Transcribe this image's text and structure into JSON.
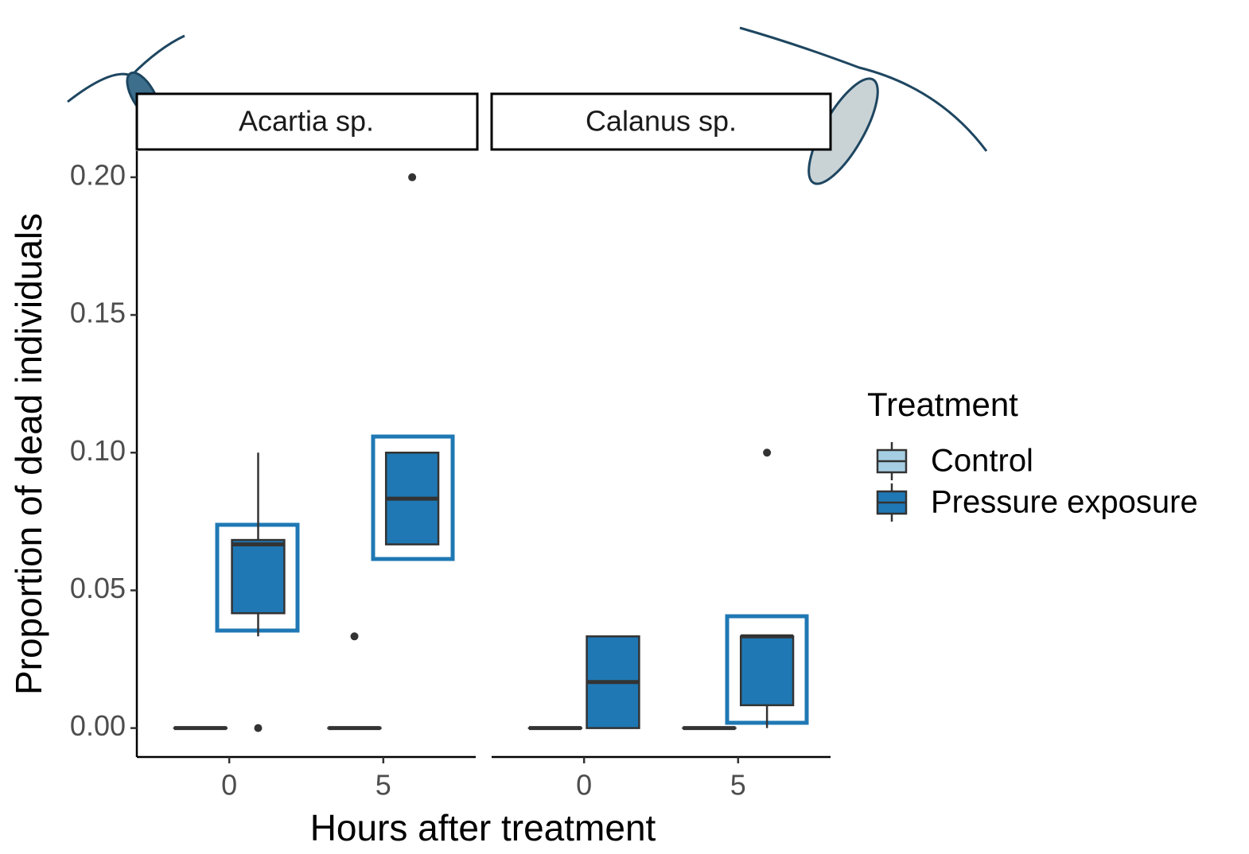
{
  "chart_data": {
    "type": "boxplot",
    "x_label": "Hours after treatment",
    "y_label": "Proportion of dead individuals",
    "categories": [
      "0",
      "5"
    ],
    "legend_title": "Treatment",
    "series": [
      {
        "name": "Control",
        "color": "#a6cee3"
      },
      {
        "name": "Pressure exposure",
        "color": "#1f78b4"
      }
    ],
    "ylim": [
      -0.0105,
      0.2095
    ],
    "yticks": [
      {
        "value": 0,
        "label": "0.00"
      },
      {
        "value": 0.05,
        "label": "0.05"
      },
      {
        "value": 0.1,
        "label": "0.10"
      },
      {
        "value": 0.15,
        "label": "0.15"
      },
      {
        "value": 0.2,
        "label": "0.20"
      }
    ],
    "facets": [
      {
        "title": "Acartia sp.",
        "boxes": [
          [
            {
              "whisker_low": 0,
              "q1": 0,
              "median": 0,
              "q3": 0,
              "whisker_high": 0,
              "outliers": []
            },
            {
              "whisker_low": 0.0333,
              "q1": 0.0417,
              "median": 0.0667,
              "q3": 0.0683,
              "whisker_high": 0.1,
              "outliers": [
                0
              ]
            }
          ],
          [
            {
              "whisker_low": 0,
              "q1": 0,
              "median": 0,
              "q3": 0,
              "whisker_high": 0,
              "outliers": [
                0.0333
              ]
            },
            {
              "whisker_low": 0.0667,
              "q1": 0.0667,
              "median": 0.0833,
              "q3": 0.1,
              "whisker_high": 0.1,
              "outliers": [
                0.2
              ]
            }
          ]
        ]
      },
      {
        "title": "Calanus sp.",
        "boxes": [
          [
            {
              "whisker_low": 0,
              "q1": 0,
              "median": 0,
              "q3": 0,
              "whisker_high": 0,
              "outliers": []
            },
            {
              "whisker_low": 0,
              "q1": 0,
              "median": 0.0167,
              "q3": 0.0333,
              "whisker_high": 0.0333,
              "outliers": []
            }
          ],
          [
            {
              "whisker_low": 0,
              "q1": 0,
              "median": 0,
              "q3": 0,
              "whisker_high": 0,
              "outliers": []
            },
            {
              "whisker_low": 0,
              "q1": 0.0083,
              "median": 0.0333,
              "q3": 0.0333,
              "whisker_high": 0.0333,
              "outliers": [
                0.1
              ]
            }
          ]
        ]
      }
    ]
  }
}
